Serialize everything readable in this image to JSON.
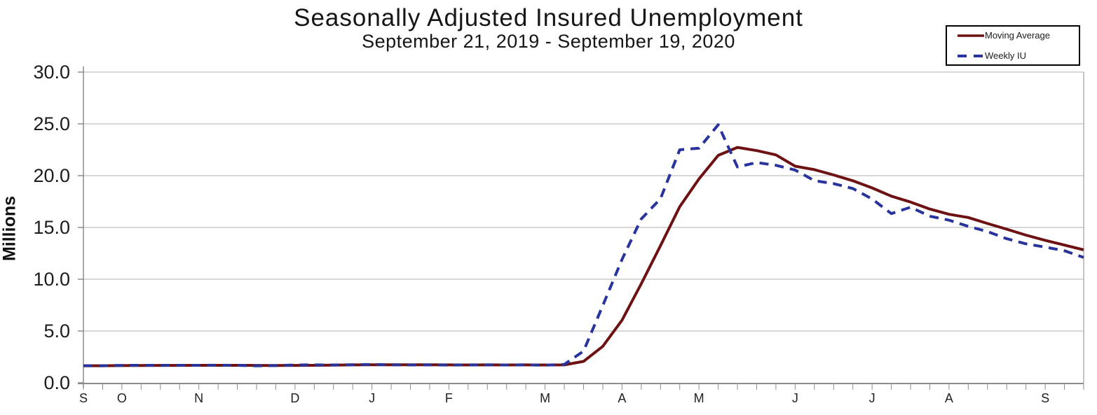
{
  "title": {
    "text": "Seasonally Adjusted Insured Unemployment",
    "subtitle": "September 21, 2019 - September 19, 2020"
  },
  "legend": {
    "items": [
      {
        "label": "Moving Average",
        "color": "#6e1112",
        "style": "solid"
      },
      {
        "label": "Weekly IU",
        "color": "#28339c",
        "style": "dashed"
      }
    ],
    "position": "top-right"
  },
  "y_axis": {
    "label": "Millions",
    "tick_labels": [
      "0.0",
      "5.0",
      "10.0",
      "15.0",
      "20.0",
      "25.0",
      "30.0"
    ],
    "min": 0,
    "max": 30,
    "step": 5
  },
  "x_axis": {
    "weeks_total": 53,
    "month_labels": [
      {
        "label": "S",
        "week": 0
      },
      {
        "label": "O",
        "week": 2
      },
      {
        "label": "N",
        "week": 6
      },
      {
        "label": "D",
        "week": 11
      },
      {
        "label": "J",
        "week": 15
      },
      {
        "label": "F",
        "week": 19
      },
      {
        "label": "M",
        "week": 24
      },
      {
        "label": "A",
        "week": 28
      },
      {
        "label": "M",
        "week": 32
      },
      {
        "label": "J",
        "week": 37
      },
      {
        "label": "J",
        "week": 41
      },
      {
        "label": "A",
        "week": 45
      },
      {
        "label": "S",
        "week": 50
      }
    ]
  },
  "chart_data": {
    "type": "line",
    "title": "Seasonally Adjusted Insured Unemployment",
    "subtitle": "September 21, 2019 - September 19, 2020",
    "xlabel": "",
    "ylabel": "Millions",
    "ylim": [
      0,
      30
    ],
    "grid": true,
    "legend_position": "top-right",
    "x": [
      "Sep 21, 2019",
      "Sep 28, 2019",
      "Oct 5, 2019",
      "Oct 12, 2019",
      "Oct 19, 2019",
      "Oct 26, 2019",
      "Nov 2, 2019",
      "Nov 9, 2019",
      "Nov 16, 2019",
      "Nov 23, 2019",
      "Nov 30, 2019",
      "Dec 7, 2019",
      "Dec 14, 2019",
      "Dec 21, 2019",
      "Dec 28, 2019",
      "Jan 4, 2020",
      "Jan 11, 2020",
      "Jan 18, 2020",
      "Jan 25, 2020",
      "Feb 1, 2020",
      "Feb 8, 2020",
      "Feb 15, 2020",
      "Feb 22, 2020",
      "Feb 29, 2020",
      "Mar 7, 2020",
      "Mar 14, 2020",
      "Mar 21, 2020",
      "Mar 28, 2020",
      "Apr 4, 2020",
      "Apr 11, 2020",
      "Apr 18, 2020",
      "Apr 25, 2020",
      "May 2, 2020",
      "May 9, 2020",
      "May 16, 2020",
      "May 23, 2020",
      "May 30, 2020",
      "Jun 6, 2020",
      "Jun 13, 2020",
      "Jun 20, 2020",
      "Jun 27, 2020",
      "Jul 4, 2020",
      "Jul 11, 2020",
      "Jul 18, 2020",
      "Jul 25, 2020",
      "Aug 1, 2020",
      "Aug 8, 2020",
      "Aug 15, 2020",
      "Aug 22, 2020",
      "Aug 29, 2020",
      "Sep 5, 2020",
      "Sep 12, 2020",
      "Sep 19, 2020"
    ],
    "series": [
      {
        "name": "Moving Average",
        "color": "#6e1112",
        "style": "solid",
        "values": [
          1.65,
          1.65,
          1.66,
          1.67,
          1.68,
          1.68,
          1.69,
          1.69,
          1.69,
          1.68,
          1.67,
          1.68,
          1.69,
          1.71,
          1.73,
          1.74,
          1.74,
          1.74,
          1.74,
          1.73,
          1.72,
          1.73,
          1.72,
          1.73,
          1.72,
          1.73,
          2.07,
          3.52,
          6.05,
          9.56,
          13.24,
          17.0,
          19.69,
          21.96,
          22.73,
          22.42,
          22.01,
          20.91,
          20.58,
          20.07,
          19.51,
          18.82,
          18.02,
          17.45,
          16.78,
          16.27,
          15.96,
          15.38,
          14.83,
          14.26,
          13.76,
          13.3,
          12.84
        ]
      },
      {
        "name": "Weekly IU",
        "color": "#28339c",
        "style": "dashed",
        "values": [
          1.65,
          1.65,
          1.68,
          1.69,
          1.68,
          1.69,
          1.69,
          1.7,
          1.69,
          1.64,
          1.66,
          1.72,
          1.73,
          1.72,
          1.74,
          1.77,
          1.74,
          1.72,
          1.73,
          1.71,
          1.73,
          1.73,
          1.72,
          1.73,
          1.7,
          1.78,
          3.06,
          7.45,
          11.91,
          15.82,
          17.78,
          22.5,
          22.65,
          24.91,
          20.84,
          21.27,
          21.0,
          20.54,
          19.52,
          19.23,
          18.76,
          17.75,
          16.34,
          16.95,
          16.09,
          15.7,
          15.11,
          14.6,
          13.91,
          13.42,
          13.1,
          12.75,
          12.1
        ]
      }
    ]
  },
  "colors": {
    "gridline": "#b0b0b0",
    "axis": "#8c8c8c",
    "tick_text": "#1c1c1c",
    "month_text": "#212121"
  }
}
